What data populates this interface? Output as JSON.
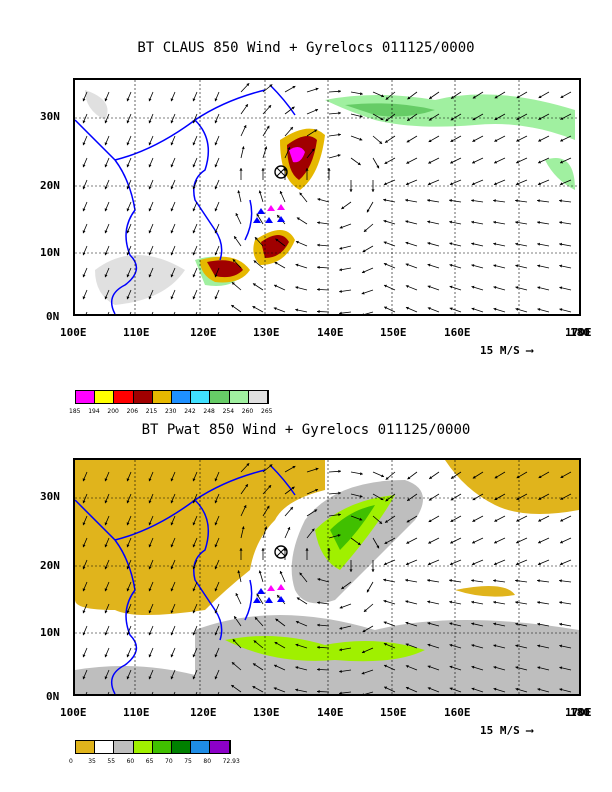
{
  "top": {
    "title": "BT CLAUS 850 Wind + Gyrelocs 011125/0000",
    "colorbar": {
      "colors": [
        "#ff00ff",
        "#ffff00",
        "#ff0000",
        "#a00000",
        "#e6b800",
        "#1e90ff",
        "#40e0ff",
        "#66cc66",
        "#a0f0a0",
        "#e0e0e0"
      ],
      "labels": [
        "185",
        "194",
        "200",
        "206",
        "215",
        "230",
        "242",
        "248",
        "254",
        "260",
        "265"
      ]
    }
  },
  "bottom": {
    "title": "BT Pwat 850 Wind + Gyrelocs 011125/0000",
    "colorbar": {
      "colors": [
        "#e0b41c",
        "#ffffff",
        "#bebebe",
        "#a0f000",
        "#40c000",
        "#008000",
        "#1e8ce6",
        "#8c00c8"
      ],
      "labels": [
        "0",
        "35",
        "55",
        "60",
        "65",
        "70",
        "75",
        "80",
        "72.93"
      ]
    }
  },
  "axes": {
    "lat_labels": [
      "30N",
      "20N",
      "10N",
      "0N"
    ],
    "lon_labels": [
      "100E",
      "110E",
      "120E",
      "130E",
      "140E",
      "150E",
      "160E",
      "170E",
      "180"
    ],
    "wind_ref": "15 M/S"
  },
  "colors": {
    "coast": "#0000ff",
    "fill_top_cloud": "#e0e0e0",
    "fill_pwat_dry": "#e0b41c"
  }
}
